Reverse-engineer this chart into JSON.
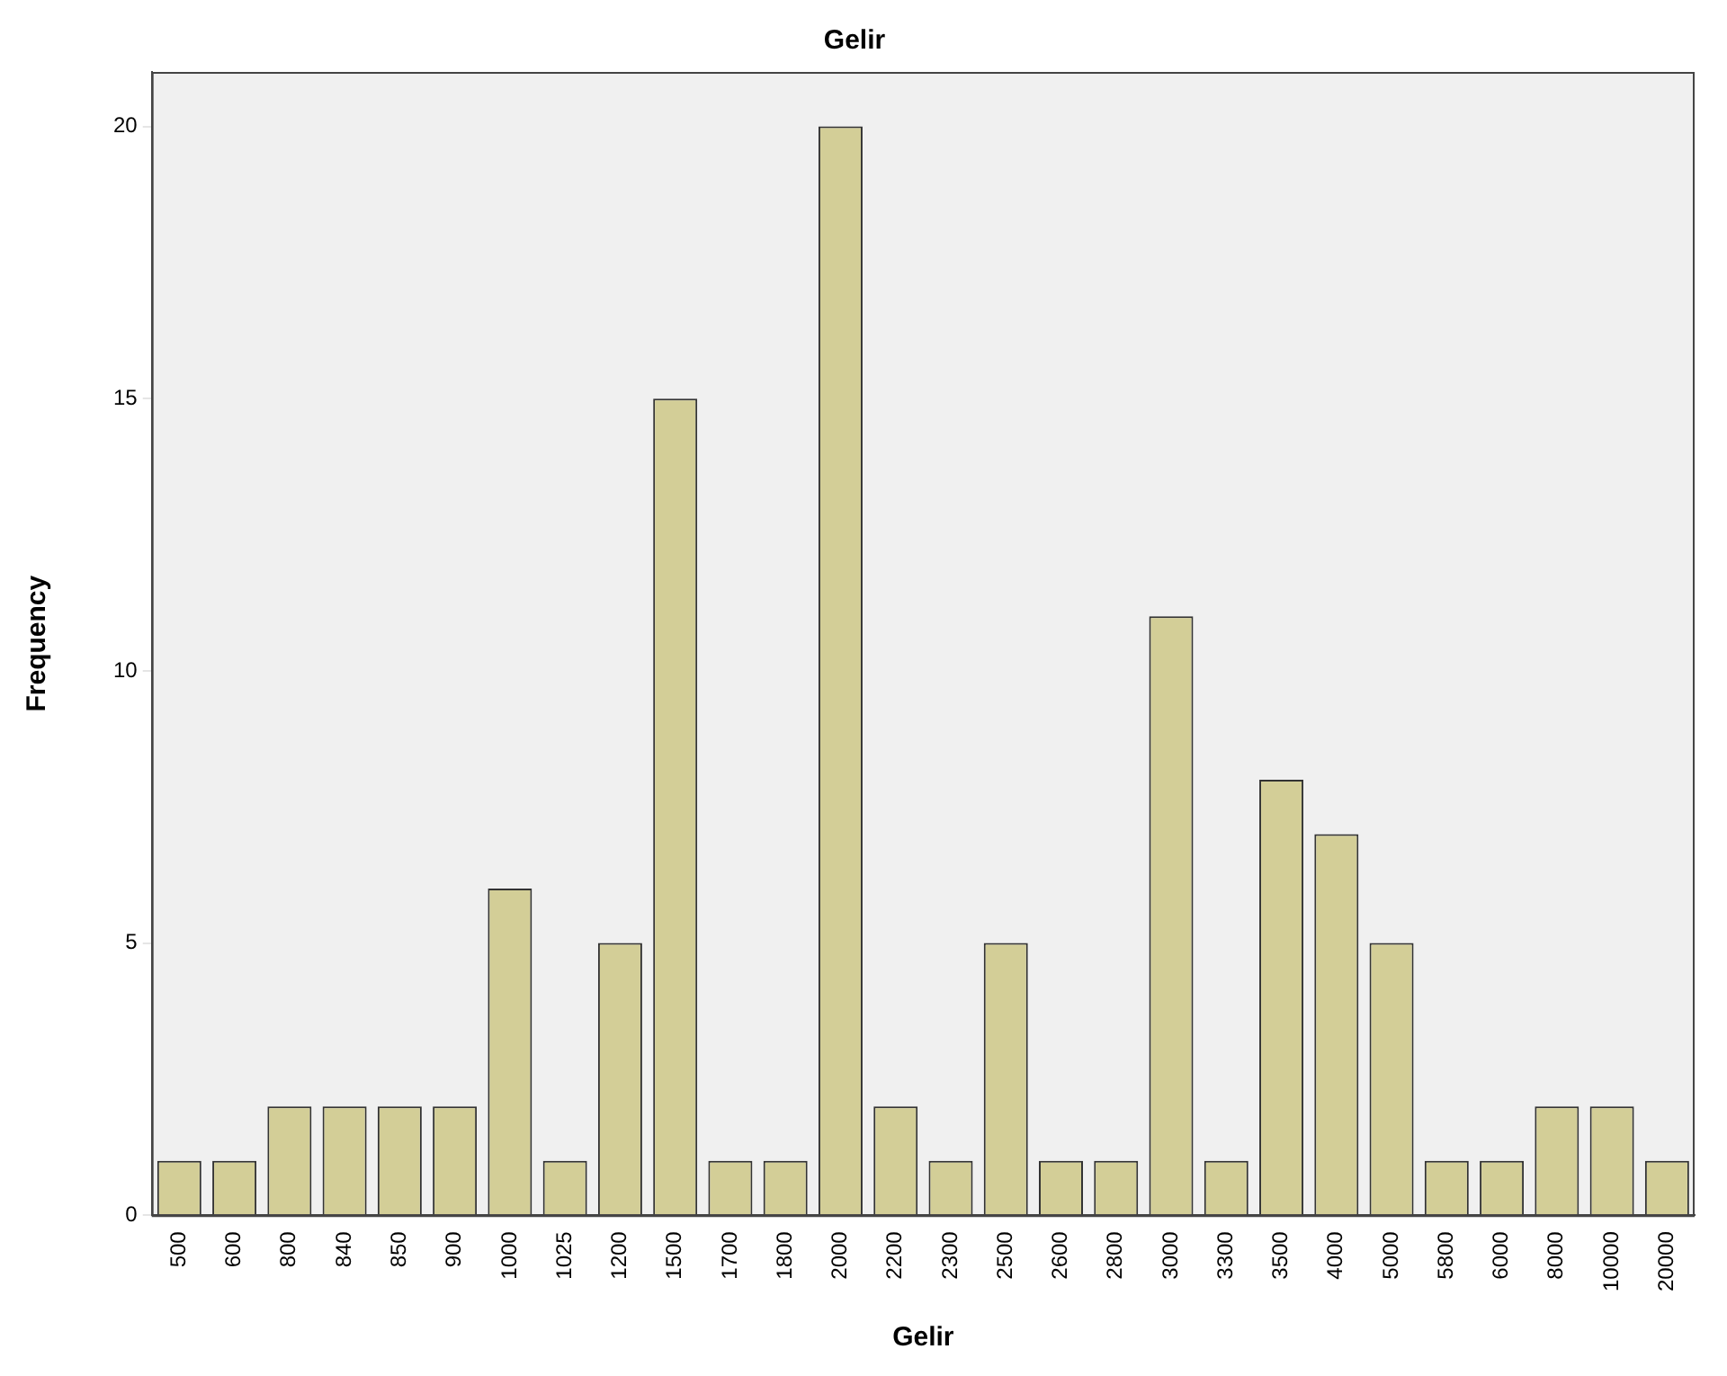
{
  "chart_data": {
    "type": "bar",
    "title": "Gelir",
    "xlabel": "Gelir",
    "ylabel": "Frequency",
    "categories": [
      "500",
      "600",
      "800",
      "840",
      "850",
      "900",
      "1000",
      "1025",
      "1200",
      "1500",
      "1700",
      "1800",
      "2000",
      "2200",
      "2300",
      "2500",
      "2600",
      "2800",
      "3000",
      "3300",
      "3500",
      "4000",
      "5000",
      "5800",
      "6000",
      "8000",
      "10000",
      "20000"
    ],
    "values": [
      1,
      1,
      2,
      2,
      2,
      2,
      6,
      1,
      5,
      15,
      1,
      1,
      20,
      2,
      1,
      5,
      1,
      1,
      11,
      1,
      8,
      7,
      5,
      1,
      1,
      2,
      2,
      1
    ],
    "color": "#d3ce97",
    "ylim": [
      0,
      21
    ],
    "yticks": [
      0,
      5,
      10,
      15,
      20
    ],
    "grid": false,
    "legend": false
  }
}
